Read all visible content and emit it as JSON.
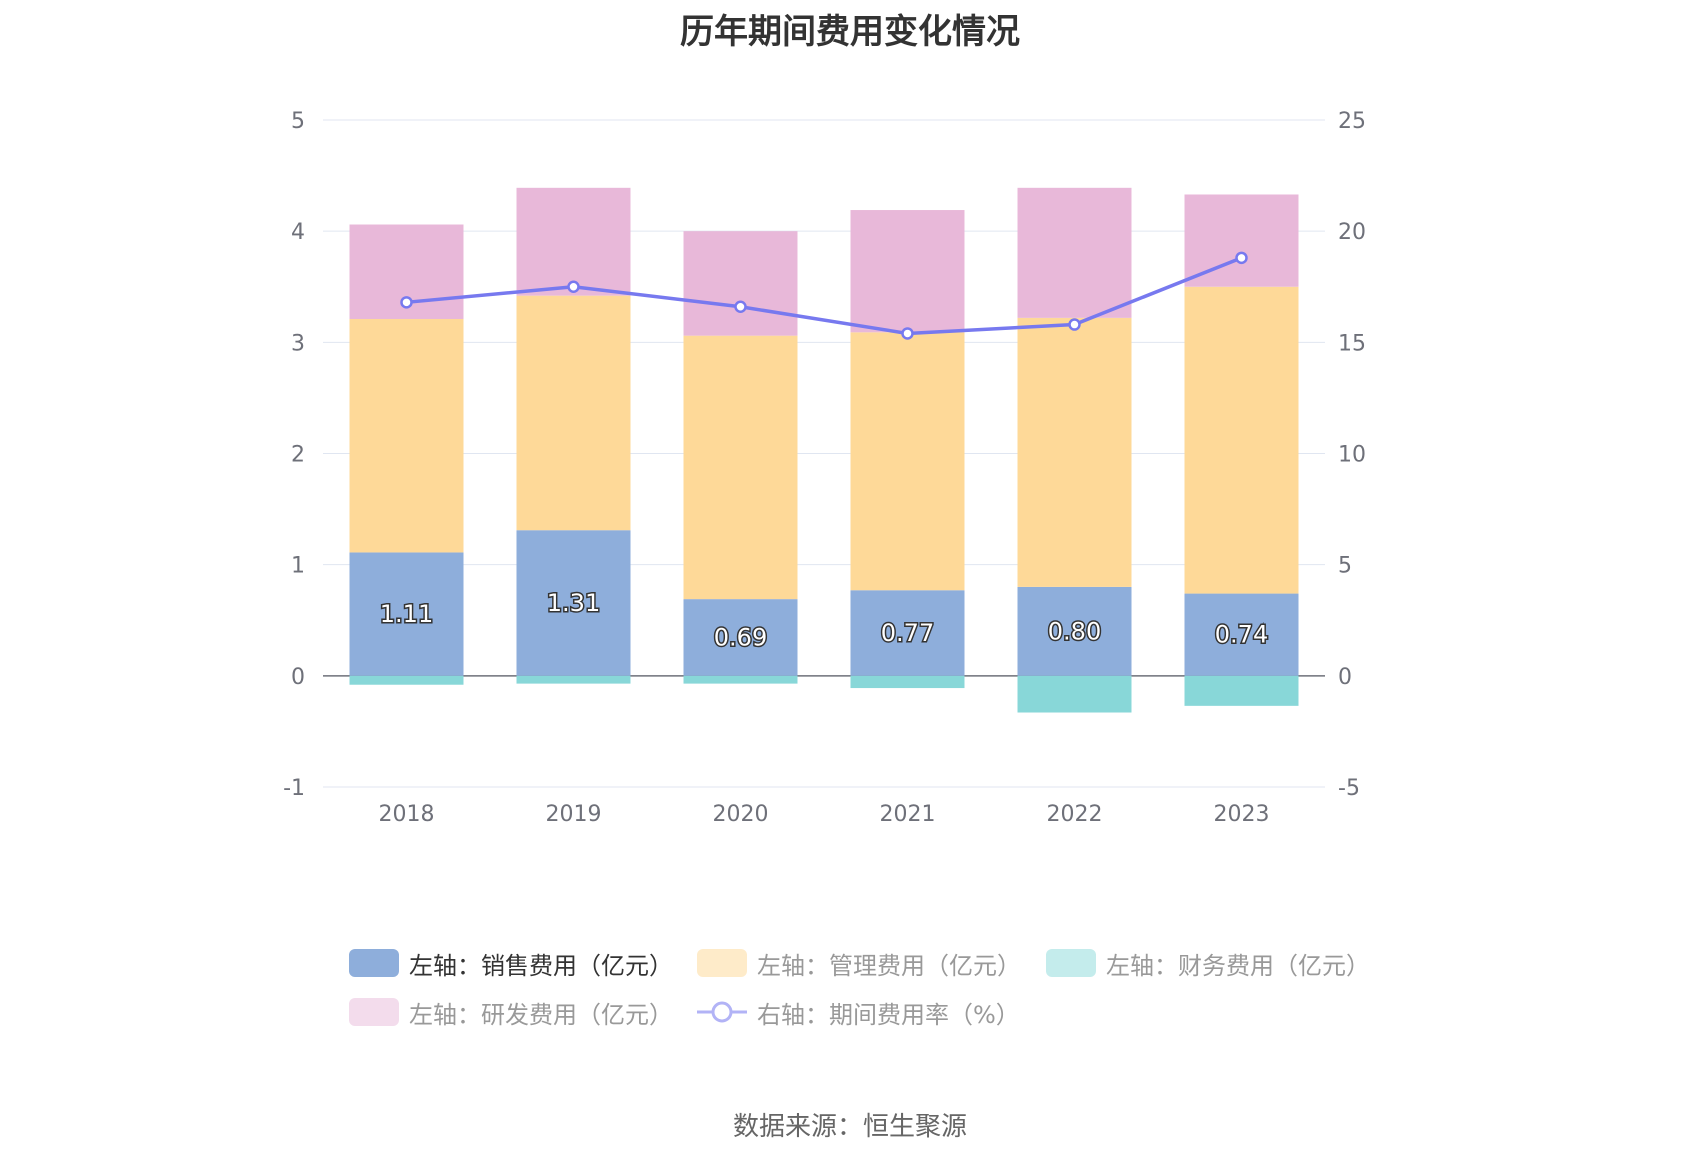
{
  "title": "历年期间费用变化情况",
  "source": "数据来源：恒生聚源",
  "chart_data": {
    "type": "bar",
    "categories": [
      "2018",
      "2019",
      "2020",
      "2021",
      "2022",
      "2023"
    ],
    "series": [
      {
        "name": "左轴：销售费用（亿元）",
        "axis": "left",
        "stack": true,
        "color": "#8eaedb",
        "values": [
          1.11,
          1.31,
          0.69,
          0.77,
          0.8,
          0.74
        ],
        "labels": [
          "1.11",
          "1.31",
          "0.69",
          "0.77",
          "0.80",
          "0.74"
        ]
      },
      {
        "name": "左轴：管理费用（亿元）",
        "axis": "left",
        "stack": true,
        "color": "#fed998",
        "values": [
          2.1,
          2.11,
          2.37,
          2.32,
          2.42,
          2.76
        ]
      },
      {
        "name": "左轴：财务费用（亿元）",
        "axis": "left",
        "stack": true,
        "color": "#88d7d8",
        "values": [
          -0.08,
          -0.07,
          -0.07,
          -0.11,
          -0.33,
          -0.27
        ]
      },
      {
        "name": "左轴：研发费用（亿元）",
        "axis": "left",
        "stack": true,
        "color": "#e8b8d9",
        "values": [
          0.85,
          0.97,
          0.94,
          1.1,
          1.17,
          0.83
        ]
      },
      {
        "name": "右轴：期间费用率（%）",
        "axis": "right",
        "type": "line",
        "color": "#7779ef",
        "values": [
          16.8,
          17.5,
          16.6,
          15.4,
          15.8,
          18.8
        ]
      }
    ],
    "left_axis": {
      "ylim": [
        -1,
        5
      ],
      "ticks": [
        "-1",
        "0",
        "1",
        "2",
        "3",
        "4",
        "5"
      ]
    },
    "right_axis": {
      "ylim": [
        -5,
        25
      ],
      "ticks": [
        "-5",
        "0",
        "5",
        "10",
        "15",
        "20",
        "25"
      ]
    },
    "grid": true,
    "legend_position": "bottom"
  },
  "legend_items": [
    {
      "label": "左轴：销售费用（亿元）",
      "color": "#8eaedb",
      "text_color": "#333333",
      "kind": "bar"
    },
    {
      "label": "左轴：管理费用（亿元）",
      "color": "#feebc9",
      "text_color": "#999999",
      "kind": "bar"
    },
    {
      "label": "左轴：财务费用（亿元）",
      "color": "#c4ecec",
      "text_color": "#999999",
      "kind": "bar"
    },
    {
      "label": "左轴：研发费用（亿元）",
      "color": "#f3dcec",
      "text_color": "#999999",
      "kind": "bar"
    },
    {
      "label": "右轴：期间费用率（%）",
      "color": "#b2b3f6",
      "text_color": "#999999",
      "kind": "line"
    }
  ]
}
